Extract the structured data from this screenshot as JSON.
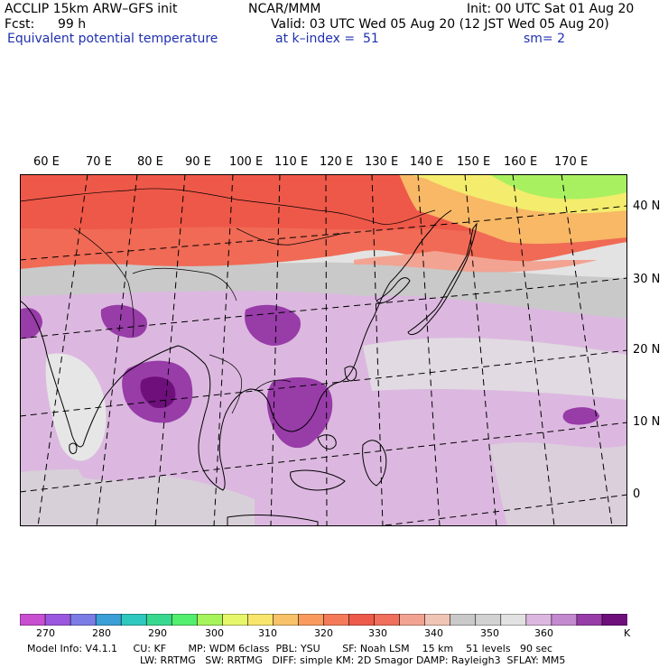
{
  "header": {
    "model": "ACCLIP 15km ARW–GFS init",
    "org": "NCAR/MMM",
    "init": "Init: 00 UTC Sat 01 Aug 20",
    "fcst_label": "Fcst:",
    "fcst_value": "99 h",
    "valid": "Valid: 03 UTC Wed 05 Aug 20 (12 JST Wed 05 Aug 20)",
    "field": "Equivalent potential temperature",
    "level": "at k–index =  51",
    "smooth": "sm= 2"
  },
  "map": {
    "lon_labels": [
      "60 E",
      "70 E",
      "80 E",
      "90 E",
      "100 E",
      "110 E",
      "120 E",
      "130 E",
      "140 E",
      "150 E",
      "160 E",
      "170 E"
    ],
    "lat_labels": [
      "40 N",
      "30 N",
      "20 N",
      "10 N",
      "0"
    ]
  },
  "colorbar": {
    "labels": [
      "270",
      "280",
      "290",
      "300",
      "310",
      "320",
      "330",
      "340",
      "350",
      "360"
    ],
    "unit": "K",
    "colors": [
      "#c84fd0",
      "#9b57e0",
      "#7c7ce6",
      "#3b9fd8",
      "#2fc8c0",
      "#38d98f",
      "#52ee6e",
      "#a6f45c",
      "#e7f76a",
      "#f8e66c",
      "#f8c268",
      "#f99a5f",
      "#f57a5a",
      "#ee5a4a",
      "#f06e5c",
      "#f2a392",
      "#efc5b5",
      "#c9c9c9",
      "#d2d2d2",
      "#e2e2e2",
      "#dcb8e0",
      "#c48ad0",
      "#983ca8",
      "#6e0f7c"
    ]
  },
  "footer": {
    "line1": "Model Info: V4.1.1     CU: KF       MP: WDM 6class  PBL: YSU       SF: Noah LSM    15 km    51 levels   90 sec",
    "line2": "LW: RRTMG   SW: RRTMG   DIFF: simple KM: 2D Smagor DAMP: Rayleigh3  SFLAY: MM5"
  }
}
